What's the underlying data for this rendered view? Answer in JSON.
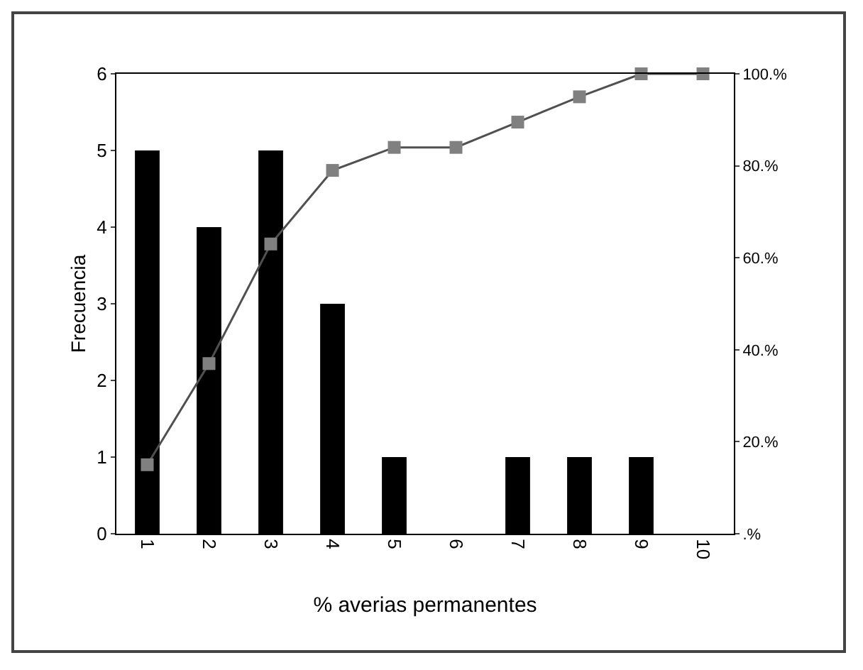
{
  "chart_data": {
    "type": "bar",
    "xlabel": "% averias permanentes",
    "ylabel": "Frecuencia",
    "categories": [
      "1",
      "2",
      "3",
      "4",
      "5",
      "6",
      "7",
      "8",
      "9",
      "10"
    ],
    "series": [
      {
        "color": "#000000",
        "values": [
          5,
          4,
          5,
          3,
          1,
          0,
          1,
          1,
          1,
          0
        ]
      },
      {
        "type": "line",
        "axis": "y2",
        "color": "#808080",
        "marker": "square",
        "values": [
          15,
          37,
          63,
          79,
          84,
          84,
          89.5,
          95,
          100,
          100
        ]
      }
    ],
    "ylim": [
      0,
      6
    ],
    "yticks": [
      0,
      1,
      2,
      3,
      4,
      5,
      6
    ],
    "y2lim": [
      0,
      100
    ],
    "y2ticks": [
      {
        "value": 0,
        "label": ".%"
      },
      {
        "value": 20,
        "label": "20.%"
      },
      {
        "value": 40,
        "label": "40.%"
      },
      {
        "value": 60,
        "label": "60.%"
      },
      {
        "value": 80,
        "label": "80.%"
      },
      {
        "value": 100,
        "label": "100.%"
      }
    ],
    "grid": false
  }
}
